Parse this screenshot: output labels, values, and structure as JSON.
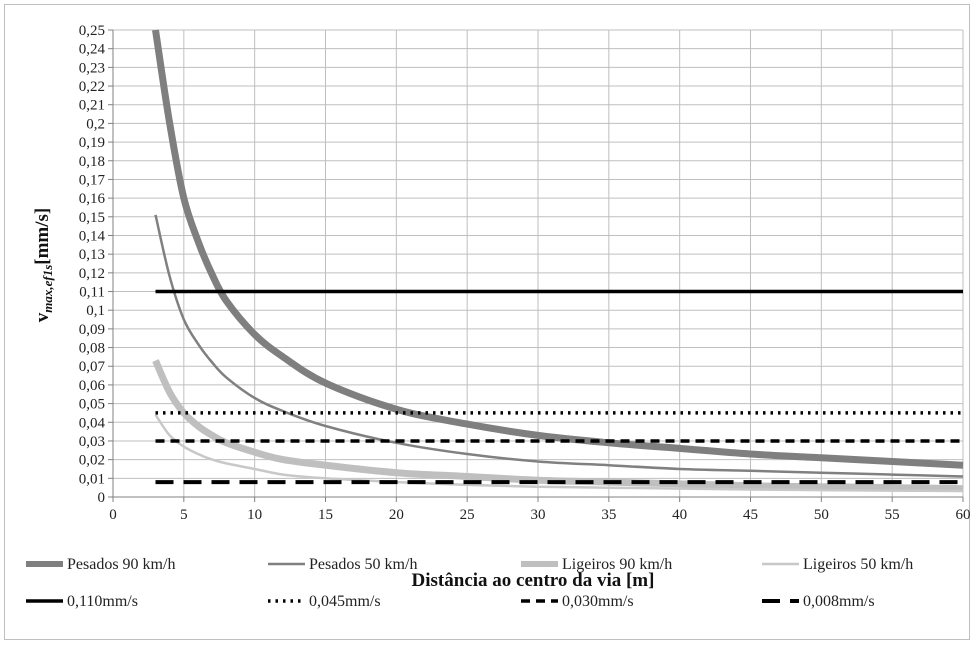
{
  "chart_data": {
    "type": "line",
    "title": "",
    "xlabel": "Distância ao centro da via [m]",
    "ylabel_main": "v",
    "ylabel_sub": "max,ef1s",
    "ylabel_unit": "[mm/s]",
    "xlim": [
      0,
      60
    ],
    "ylim": [
      0,
      0.25
    ],
    "xticks": [
      0,
      5,
      10,
      15,
      20,
      25,
      30,
      35,
      40,
      45,
      50,
      55,
      60
    ],
    "xtick_labels": [
      "0",
      "5",
      "10",
      "15",
      "20",
      "25",
      "30",
      "35",
      "40",
      "45",
      "50",
      "55",
      "60"
    ],
    "yticks": [
      0,
      0.01,
      0.02,
      0.03,
      0.04,
      0.05,
      0.06,
      0.07,
      0.08,
      0.09,
      0.1,
      0.11,
      0.12,
      0.13,
      0.14,
      0.15,
      0.16,
      0.17,
      0.18,
      0.19,
      0.2,
      0.21,
      0.22,
      0.23,
      0.24,
      0.25
    ],
    "ytick_labels": [
      "0",
      "0,01",
      "0,02",
      "0,03",
      "0,04",
      "0,05",
      "0,06",
      "0,07",
      "0,08",
      "0,09",
      "0,1",
      "0,11",
      "0,12",
      "0,13",
      "0,14",
      "0,15",
      "0,16",
      "0,17",
      "0,18",
      "0,19",
      "0,2",
      "0,21",
      "0,22",
      "0,23",
      "0,24",
      "0,25"
    ],
    "grid": true,
    "legend_position": "bottom",
    "series": [
      {
        "name": "Pesados 90 km/h",
        "color": "#7f7f7f",
        "width": 7,
        "dash": "",
        "style": "curve",
        "x": [
          3,
          4,
          5,
          6,
          7,
          8,
          10,
          12,
          15,
          20,
          25,
          30,
          35,
          40,
          45,
          50,
          55,
          60
        ],
        "y": [
          0.25,
          0.2,
          0.16,
          0.137,
          0.119,
          0.105,
          0.087,
          0.075,
          0.061,
          0.047,
          0.039,
          0.033,
          0.029,
          0.026,
          0.023,
          0.021,
          0.019,
          0.017
        ]
      },
      {
        "name": "Pesados 50 km/h",
        "color": "#808080",
        "width": 2.5,
        "dash": "",
        "style": "curve",
        "x": [
          3,
          4,
          5,
          6,
          7,
          8,
          10,
          12,
          15,
          20,
          25,
          30,
          35,
          40,
          45,
          50,
          55,
          60
        ],
        "y": [
          0.151,
          0.118,
          0.095,
          0.082,
          0.072,
          0.064,
          0.053,
          0.046,
          0.038,
          0.029,
          0.023,
          0.019,
          0.017,
          0.015,
          0.014,
          0.013,
          0.012,
          0.011
        ]
      },
      {
        "name": "Ligeiros 90 km/h",
        "color": "#bfbfbf",
        "width": 7,
        "dash": "",
        "style": "curve",
        "x": [
          3,
          4,
          5,
          6,
          7,
          8,
          10,
          12,
          15,
          20,
          25,
          30,
          35,
          40,
          45,
          50,
          55,
          60
        ],
        "y": [
          0.073,
          0.056,
          0.045,
          0.038,
          0.033,
          0.029,
          0.024,
          0.02,
          0.017,
          0.013,
          0.011,
          0.009,
          0.008,
          0.007,
          0.006,
          0.0055,
          0.005,
          0.0045
        ]
      },
      {
        "name": "Ligeiros 50 km/h",
        "color": "#c8c8c8",
        "width": 2.5,
        "dash": "",
        "style": "curve",
        "x": [
          3,
          4,
          5,
          6,
          7,
          8,
          10,
          12,
          15,
          20,
          25,
          30,
          35,
          40,
          45,
          50,
          55,
          60
        ],
        "y": [
          0.044,
          0.033,
          0.027,
          0.023,
          0.02,
          0.018,
          0.015,
          0.012,
          0.01,
          0.008,
          0.0065,
          0.0055,
          0.005,
          0.0045,
          0.004,
          0.0037,
          0.0034,
          0.0032
        ]
      },
      {
        "name": "0,110mm/s",
        "color": "#000000",
        "width": 3.5,
        "dash": "",
        "style": "hline",
        "x": [
          3,
          60
        ],
        "y": [
          0.11,
          0.11
        ]
      },
      {
        "name": "0,045mm/s",
        "color": "#000000",
        "width": 3.5,
        "dash": "2.5 5",
        "style": "hline",
        "x": [
          3,
          60
        ],
        "y": [
          0.045,
          0.045
        ]
      },
      {
        "name": "0,030mm/s",
        "color": "#000000",
        "width": 3.5,
        "dash": "9 6",
        "style": "hline",
        "x": [
          3,
          60
        ],
        "y": [
          0.03,
          0.03
        ]
      },
      {
        "name": "0,008mm/s",
        "color": "#000000",
        "width": 4,
        "dash": "18 10",
        "style": "hline",
        "x": [
          3,
          60
        ],
        "y": [
          0.008,
          0.008
        ]
      }
    ]
  }
}
